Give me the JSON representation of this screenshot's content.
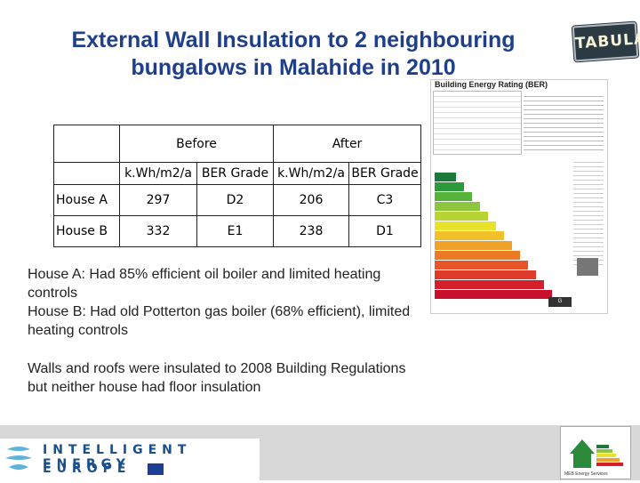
{
  "title_lines": [
    "External Wall Insulation to 2 neighbouring",
    "bungalows in Malahide in 2010"
  ],
  "logo_text": "TABULA",
  "table": {
    "group_headers": [
      "Before",
      "After"
    ],
    "sub_headers": [
      "k.Wh/m2/a",
      "BER Grade",
      "k.Wh/m2/a",
      "BER Grade"
    ],
    "rows": [
      {
        "label": "House A",
        "before_kwh": "297",
        "before_grade": "D2",
        "after_kwh": "206",
        "after_grade": "C3"
      },
      {
        "label": "House B",
        "before_kwh": "332",
        "before_grade": "E1",
        "after_kwh": "238",
        "after_grade": "D1"
      }
    ]
  },
  "notes": {
    "line1": "House A: Had 85% efficient oil boiler and limited heating controls",
    "line2": "House B: Had old Potterton gas boiler (68% efficient), limited heating controls",
    "line3": "Walls and roofs were insulated to 2008 Building Regulations but neither house had floor insulation"
  },
  "certificate": {
    "title": "Building Energy Rating (BER)",
    "label_G": "G",
    "bar_colors": [
      "#1b7a3a",
      "#2a9a3a",
      "#55b23a",
      "#8cc63f",
      "#b8d433",
      "#e8e22a",
      "#f2c12a",
      "#f0a12a",
      "#ec7a24",
      "#e8552a",
      "#e03a2a",
      "#d41f2a",
      "#c8102e"
    ]
  },
  "footer": {
    "iee_line1": "INTELLIGENT ENERGY",
    "iee_line2": "EUROPE",
    "iee_colors": {
      "brand": "#1a4f8a",
      "mark": "#5fb3d9"
    },
    "icon_label": "MEB Energy Services"
  }
}
